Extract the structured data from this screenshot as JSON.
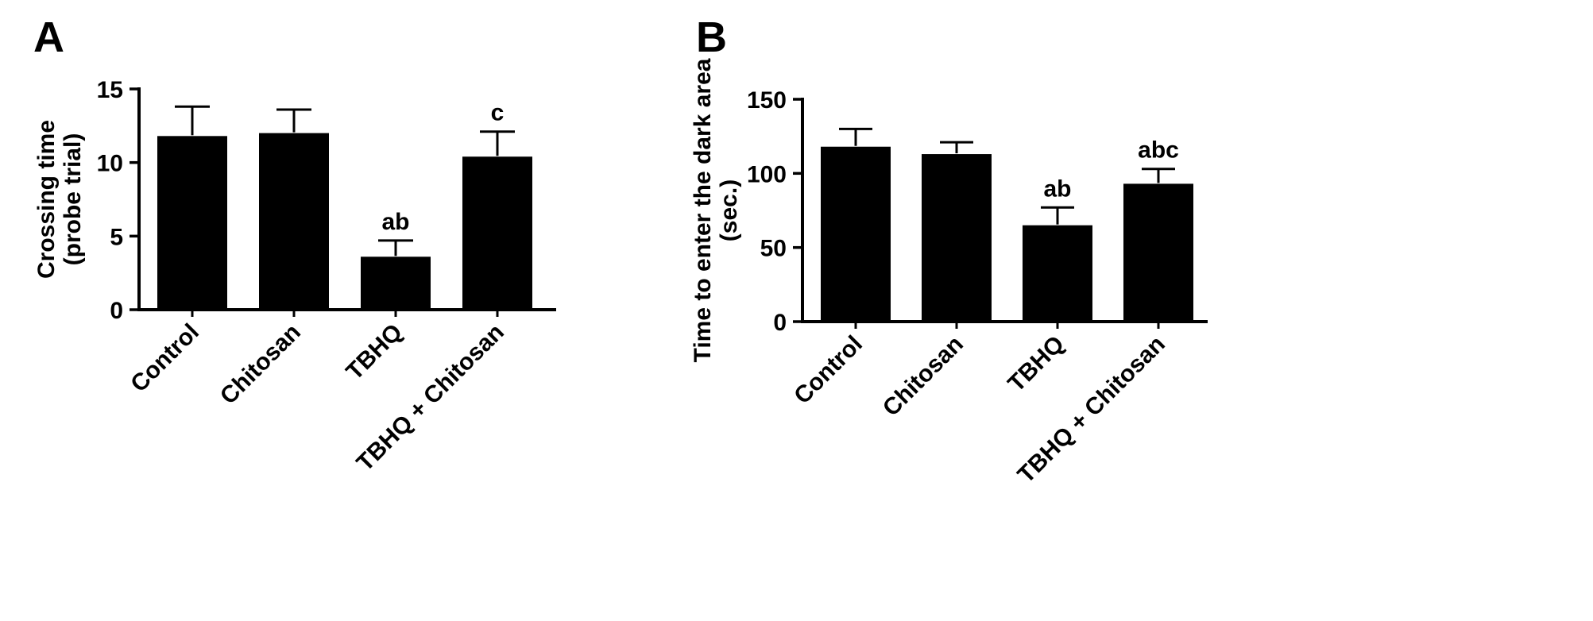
{
  "figure": {
    "panels": [
      {
        "label": "A"
      },
      {
        "label": "B"
      }
    ]
  },
  "chart_data": [
    {
      "type": "bar",
      "panel": "A",
      "title": "",
      "xlabel": "",
      "ylabel": "Crossing time (probe trial)",
      "ylabel_lines": [
        "Crossing time",
        "(probe trial)"
      ],
      "categories": [
        "Control",
        "Chitosan",
        "TBHQ",
        "TBHQ + Chitosan"
      ],
      "values": [
        11.8,
        12.0,
        3.6,
        10.4
      ],
      "errors_plus": [
        2.0,
        1.6,
        1.1,
        1.7
      ],
      "annotations": [
        "",
        "",
        "ab",
        "c"
      ],
      "ylim": [
        0,
        15
      ],
      "yticks": [
        0,
        5,
        10,
        15
      ],
      "bar_color": "#000000",
      "error_bar_style": "upper-cap",
      "grid": false,
      "legend": false
    },
    {
      "type": "bar",
      "panel": "B",
      "title": "",
      "xlabel": "",
      "ylabel": "Time to enter the dark area (sec.)",
      "ylabel_lines": [
        "Time to enter the dark area",
        "(sec.)"
      ],
      "categories": [
        "Control",
        "Chitosan",
        "TBHQ",
        "TBHQ + Chitosan"
      ],
      "values": [
        118,
        113,
        65,
        93
      ],
      "errors_plus": [
        12,
        8,
        12,
        10
      ],
      "annotations": [
        "",
        "",
        "ab",
        "abc"
      ],
      "ylim": [
        0,
        150
      ],
      "yticks": [
        0,
        50,
        100,
        150
      ],
      "bar_color": "#000000",
      "error_bar_style": "upper-cap",
      "grid": false,
      "legend": false
    }
  ]
}
